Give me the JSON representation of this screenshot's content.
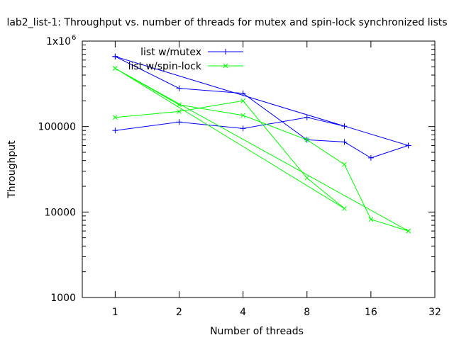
{
  "chart_data": {
    "type": "line",
    "title": "lab2_list-1: Throughput vs. number of threads for mutex and spin-lock synchronized lists",
    "xlabel": "Number of threads",
    "ylabel": "Throughput",
    "x_scale": "log2",
    "y_scale": "log10",
    "xlim": [
      0.7,
      32
    ],
    "ylim": [
      1000,
      1000000
    ],
    "x_ticks": [
      1,
      2,
      4,
      8,
      16,
      32
    ],
    "x_tick_labels": [
      "1",
      "2",
      "4",
      "8",
      "16",
      "32"
    ],
    "y_ticks": [
      1000,
      10000,
      100000,
      1000000
    ],
    "y_tick_labels": [
      "1000",
      "10000",
      "100000",
      "1x10"
    ],
    "y_top_exponent": "6",
    "grid": false,
    "legend_position": "top-left",
    "series": [
      {
        "name": "list w/mutex",
        "color": "#0000ff",
        "marker": "plus",
        "x": [
          1,
          2,
          4,
          8,
          12,
          1,
          2,
          4,
          8,
          12,
          16,
          24,
          1,
          24
        ],
        "y": [
          90000,
          113000,
          95000,
          128000,
          101000,
          660000,
          280000,
          245000,
          70000,
          66000,
          43000,
          60000,
          660000,
          60000
        ]
      },
      {
        "name": "list w/spin-lock",
        "color": "#00ff00",
        "marker": "cross",
        "x": [
          1,
          2,
          4,
          8,
          12,
          1,
          2,
          4,
          8,
          12,
          16,
          24,
          1,
          24
        ],
        "y": [
          128000,
          150000,
          200000,
          25000,
          11000,
          480000,
          180000,
          135000,
          70000,
          36000,
          8200,
          6000,
          480000,
          6000
        ]
      }
    ]
  }
}
